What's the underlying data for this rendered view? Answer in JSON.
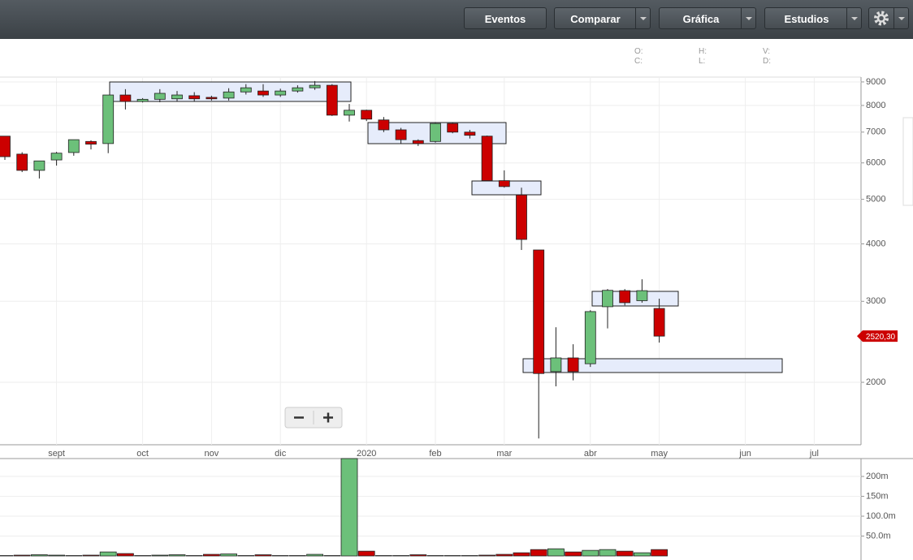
{
  "toolbar": {
    "buttons": [
      "Eventos",
      "Comparar",
      "Gráfica",
      "Estudios"
    ]
  },
  "ohlc_labels": [
    "O:",
    "H:",
    "V:",
    "C:",
    "L:",
    "D:"
  ],
  "chart_data": [
    {
      "type": "candlestick",
      "categories": [
        null,
        null,
        null,
        "sept",
        null,
        null,
        null,
        null,
        "oct",
        null,
        null,
        null,
        "nov",
        null,
        null,
        null,
        "dic",
        null,
        null,
        null,
        null,
        "2020",
        null,
        null,
        null,
        "feb",
        null,
        null,
        null,
        "mar",
        null,
        null,
        null,
        null,
        "abr",
        null,
        null,
        null,
        "may",
        null,
        null,
        null,
        null,
        "jun",
        null,
        null,
        null,
        "jul",
        null,
        null
      ],
      "open": [
        6860,
        6270,
        5780,
        6090,
        6320,
        6680,
        6610,
        8430,
        8160,
        8250,
        8270,
        8400,
        8330,
        8300,
        8560,
        8600,
        8430,
        8600,
        8740,
        8850,
        7620,
        7810,
        7440,
        7080,
        6710,
        6680,
        7310,
        7000,
        6860,
        5490,
        5110,
        3880,
        2110,
        2260,
        2195,
        2920,
        3165,
        3010,
        2895,
        null,
        null,
        null,
        null,
        null,
        null,
        null,
        null,
        null,
        null,
        null
      ],
      "high": [
        6860,
        6330,
        6060,
        6340,
        6740,
        6720,
        8430,
        8680,
        8300,
        8680,
        8600,
        8550,
        8400,
        8720,
        8900,
        8900,
        8700,
        8850,
        9040,
        8900,
        8060,
        7830,
        7550,
        7150,
        6750,
        7350,
        7330,
        7080,
        6880,
        5780,
        5300,
        3880,
        2635,
        2420,
        2870,
        3190,
        3190,
        3350,
        3040,
        null,
        null,
        null,
        null,
        null,
        null,
        null,
        null,
        null,
        null,
        null
      ],
      "low": [
        6090,
        5730,
        5550,
        5920,
        6220,
        6420,
        6300,
        7840,
        8120,
        8130,
        8150,
        8150,
        8200,
        8200,
        8450,
        8350,
        8350,
        8530,
        8650,
        7590,
        7380,
        7400,
        7000,
        6610,
        6530,
        6640,
        6960,
        6780,
        5480,
        5300,
        3880,
        1510,
        1960,
        2020,
        2160,
        2620,
        2940,
        2980,
        2440,
        null,
        null,
        null,
        null,
        null,
        null,
        null,
        null,
        null,
        null,
        null
      ],
      "close": [
        6190,
        5780,
        6060,
        6300,
        6740,
        6590,
        8430,
        8160,
        8250,
        8500,
        8430,
        8270,
        8270,
        8560,
        8740,
        8430,
        8600,
        8740,
        8850,
        7620,
        7810,
        7470,
        7080,
        6740,
        6610,
        7310,
        7000,
        6890,
        5490,
        5330,
        4090,
        2090,
        2260,
        2110,
        2850,
        3170,
        2980,
        3165,
        2520.3,
        null,
        null,
        null,
        null,
        null,
        null,
        null,
        null,
        null,
        null,
        null
      ],
      "up_color": "#6cc07a",
      "down_color": "#cc0000",
      "log_scale": true,
      "ylim": [
        1463,
        9220
      ],
      "yticks": [
        2000,
        3000,
        4000,
        5000,
        6000,
        7000,
        8000,
        9000
      ],
      "last_price": {
        "value": 2520.3,
        "label": "2520,30"
      },
      "grid": true
    },
    {
      "type": "volume",
      "values": [
        1,
        2,
        3,
        2,
        1,
        2,
        10,
        6,
        1,
        2,
        3,
        1,
        4,
        5,
        1,
        3,
        1,
        1,
        4,
        1,
        245,
        12,
        1,
        1,
        3,
        1,
        1,
        1,
        2,
        4,
        8,
        16,
        18,
        10,
        14,
        16,
        12,
        8,
        16,
        null,
        null,
        null,
        null,
        null,
        null,
        null,
        null,
        null,
        null,
        null
      ],
      "ylim": [
        0,
        245
      ],
      "yticks": [
        {
          "value": 50,
          "label": "50.0m"
        },
        {
          "value": 100,
          "label": "100.0m"
        },
        {
          "value": 150,
          "label": "150m"
        },
        {
          "value": 200,
          "label": "200m"
        }
      ],
      "grid": true
    }
  ]
}
